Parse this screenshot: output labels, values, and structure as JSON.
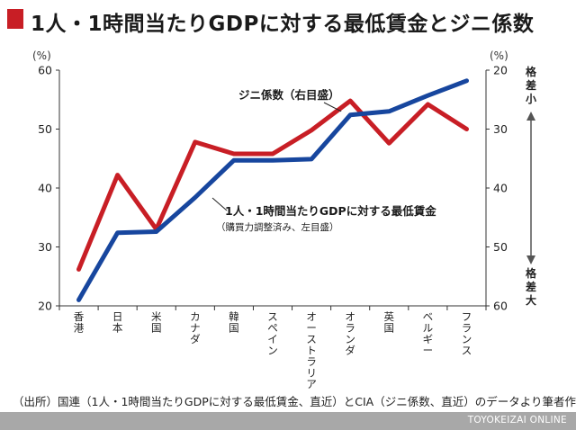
{
  "title": "1人・1時間当たりGDPに対する最低賃金とジニ係数",
  "source_note": "（出所）国連（1人・1時間当たりGDPに対する最低賃金、直近）とCIA（ジニ係数、直近）のデータより筆者作成",
  "footer": "TOYOKEIZAI ONLINE",
  "colors": {
    "accent": "#c81e25",
    "min_wage_line": "#c81e25",
    "gini_line": "#17469e",
    "footer_bg": "#a8a8a8"
  },
  "chart_data": {
    "type": "line",
    "categories": [
      "香港",
      "日本",
      "米国",
      "カナダ",
      "韓国",
      "スペイン",
      "オーストラリア",
      "オランダ",
      "英国",
      "ベルギー",
      "フランス"
    ],
    "left_axis": {
      "unit": "(%)",
      "range": [
        20,
        60
      ],
      "ticks": [
        "60",
        "50",
        "40",
        "30",
        "20"
      ]
    },
    "right_axis": {
      "unit": "(%)",
      "range": [
        20,
        60
      ],
      "reversed": true,
      "ticks": [
        "20",
        "30",
        "40",
        "50",
        "60"
      ]
    },
    "right_labels": {
      "top": "格差小",
      "bottom": "格差大"
    },
    "grid": false,
    "series": [
      {
        "name": "1人・1時間当たりGDPに対する最低賃金",
        "sublabel": "（購買力調整済み、左目盛）",
        "axis": "left",
        "color": "#c81e25",
        "values": [
          26.2,
          42.2,
          33.0,
          47.8,
          45.8,
          45.8,
          49.8,
          54.8,
          47.6,
          54.2,
          50.0
        ]
      },
      {
        "name": "ジニ係数（右目盛）",
        "axis": "right",
        "color": "#17469e",
        "values": [
          59.0,
          47.6,
          47.4,
          41.6,
          35.3,
          35.3,
          35.1,
          27.6,
          27.0,
          24.3,
          21.8
        ]
      }
    ]
  }
}
